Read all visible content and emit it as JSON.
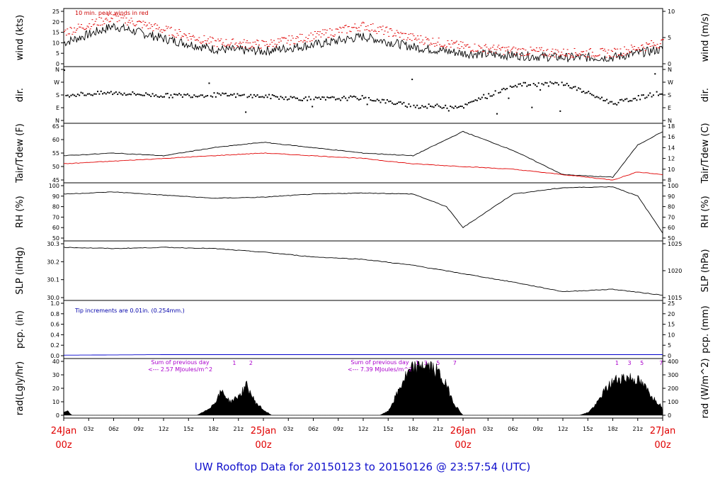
{
  "footer_title": "UW Rooftop Data for 20150123  to  20150126 @ 23:57:54  (UTC)",
  "colors": {
    "black": "#000000",
    "red": "#e00000",
    "blue": "#0000cc",
    "purple": "#aa00cc"
  },
  "x_axis": {
    "hour_ticks": [
      "03z",
      "06z",
      "09z",
      "12z",
      "15z",
      "18z",
      "21z",
      "03z",
      "06z",
      "09z",
      "12z",
      "15z",
      "18z",
      "21z",
      "03z",
      "06z",
      "09z",
      "12z",
      "15z",
      "18z",
      "21z"
    ],
    "day_labels": [
      {
        "date": "24Jan",
        "hour": "00z"
      },
      {
        "date": "25Jan",
        "hour": "00z"
      },
      {
        "date": "26Jan",
        "hour": "00z"
      },
      {
        "date": "27Jan",
        "hour": "00z"
      }
    ]
  },
  "chart_data": [
    {
      "id": "wind",
      "type": "line",
      "ylabel_left": "wind (kts)",
      "ylabel_right": "wind (m/s)",
      "left_ticks": [
        "0",
        "5",
        "10",
        "15",
        "20",
        "25"
      ],
      "ylim_left": [
        0,
        25
      ],
      "right_ticks": [
        "0",
        "5",
        "10"
      ],
      "ylim_right": [
        0,
        12.86
      ],
      "annotation": "10 min. peak winds in red",
      "series": [
        {
          "color": "#000000",
          "x_hours": [
            0,
            6,
            12,
            18,
            24,
            30,
            36,
            42,
            48,
            54,
            60,
            66,
            72
          ],
          "values": [
            10,
            18,
            12,
            7,
            6,
            9,
            13,
            8,
            5,
            4,
            3,
            3,
            7
          ]
        },
        {
          "color": "#e00000",
          "x_hours": [
            0,
            6,
            12,
            18,
            24,
            30,
            36,
            42,
            48,
            54,
            60,
            66,
            72
          ],
          "values": [
            15,
            22,
            16,
            10,
            9,
            13,
            18,
            12,
            8,
            6,
            5,
            5,
            10
          ]
        }
      ]
    },
    {
      "id": "dir",
      "type": "scatter",
      "ylabel_left": "dir.",
      "ylabel_right": "dir.",
      "left_ticks": [
        "N",
        "E",
        "S",
        "W",
        "N"
      ],
      "right_ticks": [
        "N",
        "E",
        "S",
        "W",
        "N"
      ],
      "ylim": [
        0,
        360
      ],
      "series": [
        {
          "color": "#000000",
          "x_hours": [
            0,
            6,
            12,
            18,
            24,
            30,
            36,
            42,
            48,
            54,
            60,
            66,
            72
          ],
          "values": [
            180,
            195,
            175,
            180,
            170,
            150,
            160,
            100,
            100,
            250,
            260,
            120,
            200
          ]
        }
      ]
    },
    {
      "id": "temp",
      "type": "line",
      "ylabel_left": "Tair/Tdew (F)",
      "ylabel_right": "Tair/Tdew (C)",
      "left_ticks": [
        "45",
        "50",
        "55",
        "60",
        "65"
      ],
      "ylim_left": [
        45,
        65
      ],
      "right_ticks": [
        "8",
        "10",
        "12",
        "14",
        "16",
        "18"
      ],
      "ylim_right": [
        7.22,
        18.33
      ],
      "series": [
        {
          "name": "Tair",
          "color": "#000000",
          "x_hours": [
            0,
            6,
            12,
            18,
            24,
            30,
            36,
            42,
            48,
            54,
            60,
            66,
            69,
            72
          ],
          "values": [
            54,
            55,
            54,
            57,
            59,
            57,
            55,
            54,
            63,
            56,
            47,
            46,
            58,
            63
          ]
        },
        {
          "name": "Tdew",
          "color": "#e00000",
          "x_hours": [
            0,
            6,
            12,
            18,
            24,
            30,
            36,
            42,
            48,
            54,
            60,
            66,
            69,
            72
          ],
          "values": [
            51,
            52,
            53,
            54,
            55,
            54,
            53,
            51,
            50,
            49,
            47,
            45,
            48,
            47
          ]
        }
      ]
    },
    {
      "id": "rh",
      "type": "line",
      "ylabel_left": "RH (%)",
      "ylabel_right": "RH (%)",
      "left_ticks": [
        "50",
        "60",
        "70",
        "80",
        "90",
        "100"
      ],
      "ylim": [
        50,
        100
      ],
      "right_ticks": [
        "50",
        "60",
        "70",
        "80",
        "90",
        "100"
      ],
      "series": [
        {
          "color": "#000000",
          "x_hours": [
            0,
            6,
            12,
            18,
            24,
            30,
            36,
            42,
            46,
            48,
            54,
            60,
            66,
            69,
            72
          ],
          "values": [
            92,
            94,
            91,
            88,
            89,
            92,
            93,
            92,
            80,
            60,
            92,
            98,
            99,
            90,
            55
          ]
        }
      ]
    },
    {
      "id": "slp",
      "type": "line",
      "ylabel_left": "SLP (inHg)",
      "ylabel_right": "SLP (hPa)",
      "left_ticks": [
        "30.0",
        "30.1",
        "30.2",
        "30.3"
      ],
      "ylim_left": [
        29.95,
        30.4
      ],
      "right_ticks": [
        "1015",
        "1020",
        "1025"
      ],
      "ylim_right": [
        1014.2,
        1029.4
      ],
      "series": [
        {
          "color": "#000000",
          "x_hours": [
            0,
            6,
            12,
            18,
            24,
            30,
            36,
            42,
            48,
            54,
            60,
            66,
            72
          ],
          "values": [
            30.37,
            30.36,
            30.37,
            30.36,
            30.33,
            30.29,
            30.27,
            30.22,
            30.15,
            30.08,
            30.0,
            30.02,
            29.97
          ]
        }
      ]
    },
    {
      "id": "pcp",
      "type": "line",
      "ylabel_left": "pcp. (in)",
      "ylabel_right": "pcp. (mm)",
      "left_ticks": [
        "0.0",
        "0.2",
        "0.4",
        "0.6",
        "0.8",
        "1.0"
      ],
      "ylim_left": [
        0,
        1
      ],
      "right_ticks": [
        "0",
        "5",
        "10",
        "15",
        "20",
        "25"
      ],
      "ylim_right": [
        0,
        25.4
      ],
      "annotation": "Tip increments are 0.01in. (0.254mm.)",
      "series": [
        {
          "color": "#0000cc",
          "x_hours": [
            0,
            12,
            72
          ],
          "values": [
            0.01,
            0.02,
            0.02
          ]
        }
      ]
    },
    {
      "id": "rad",
      "type": "area",
      "ylabel_left": "rad(Lgly/hr)",
      "ylabel_right": "rad (W/m^2)",
      "left_ticks": [
        "0",
        "10",
        "20",
        "30",
        "40"
      ],
      "ylim_left": [
        0,
        40
      ],
      "right_ticks": [
        "0",
        "100",
        "200",
        "300",
        "400"
      ],
      "ylim_right": [
        0,
        465
      ],
      "annotations": [
        {
          "text": "Sum of previous day",
          "day": 1
        },
        {
          "text": "<--- 2.57 MJoules/m^2",
          "day": 1
        },
        {
          "text": "Sum of previous day",
          "day": 2
        },
        {
          "text": "<--- 7.39 MJoules/m^2",
          "day": 2
        }
      ],
      "day_markers": [
        {
          "labels": [
            "1",
            "2"
          ],
          "x_hours": [
            20.5,
            22.5
          ]
        },
        {
          "labels": [
            "1",
            "3",
            "5",
            "7"
          ],
          "x_hours": [
            42.5,
            43.5,
            45,
            47
          ]
        },
        {
          "labels": [
            "1",
            "3",
            "5",
            "7"
          ],
          "x_hours": [
            66.5,
            68,
            69.5,
            71.8
          ]
        }
      ],
      "series": [
        {
          "color": "#000000",
          "x_hours": [
            0,
            0.5,
            1,
            16,
            17,
            18,
            19,
            20,
            21,
            22,
            23,
            24,
            25,
            38,
            39,
            40,
            41,
            42,
            43,
            44,
            45,
            46,
            47,
            48,
            62,
            63,
            64,
            65,
            66,
            67,
            68,
            69,
            70,
            71,
            72
          ],
          "values": [
            2,
            3,
            0,
            0,
            3,
            8,
            18,
            10,
            14,
            22,
            10,
            4,
            0,
            0,
            3,
            15,
            28,
            35,
            38,
            36,
            32,
            22,
            8,
            0,
            0,
            2,
            8,
            18,
            25,
            28,
            28,
            26,
            20,
            12,
            6
          ]
        }
      ]
    }
  ]
}
